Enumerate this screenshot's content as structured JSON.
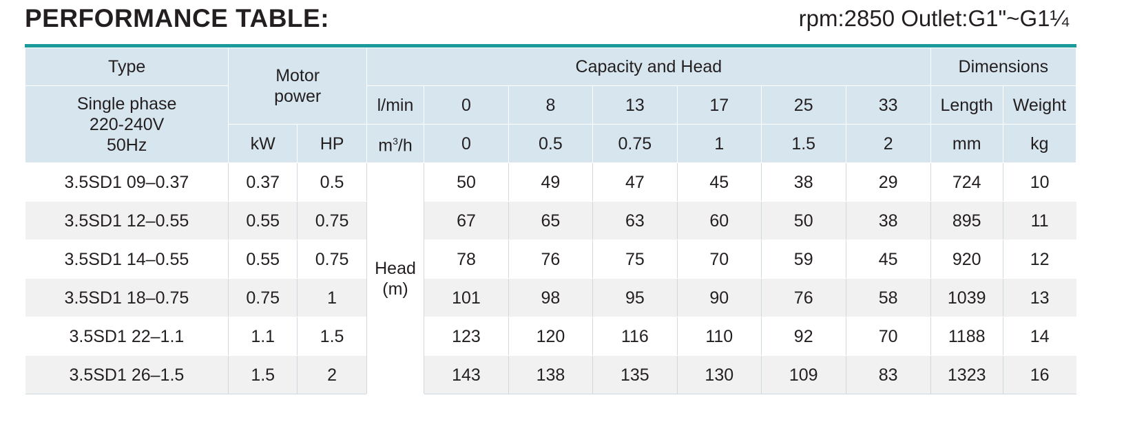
{
  "title": "PERFORMANCE TABLE:",
  "spec": "rpm:2850 Outlet:G1\"~G1¼",
  "header": {
    "type": "Type",
    "phase": [
      "Single phase",
      "220-240V",
      "50Hz"
    ],
    "motor": [
      "Motor",
      "power"
    ],
    "capacity_head": "Capacity and Head",
    "dimensions": "Dimensions",
    "lmin": "l/min",
    "m3h_base": "m",
    "m3h_sup": "3",
    "m3h_tail": "/h",
    "kw": "kW",
    "hp": "HP",
    "length": "Length",
    "weight": "Weight",
    "mm": "mm",
    "kg": "kg",
    "lmin_values": [
      "0",
      "8",
      "13",
      "17",
      "25",
      "33"
    ],
    "m3h_values": [
      "0",
      "0.5",
      "0.75",
      "1",
      "1.5",
      "2"
    ],
    "head_label": [
      "Head",
      "(m)"
    ]
  },
  "rows": [
    {
      "type": "3.5SD1 09–0.37",
      "kw": "0.37",
      "hp": "0.5",
      "heads": [
        "50",
        "49",
        "47",
        "45",
        "38",
        "29"
      ],
      "length": "724",
      "weight": "10"
    },
    {
      "type": "3.5SD1 12–0.55",
      "kw": "0.55",
      "hp": "0.75",
      "heads": [
        "67",
        "65",
        "63",
        "60",
        "50",
        "38"
      ],
      "length": "895",
      "weight": "11"
    },
    {
      "type": "3.5SD1 14–0.55",
      "kw": "0.55",
      "hp": "0.75",
      "heads": [
        "78",
        "76",
        "75",
        "70",
        "59",
        "45"
      ],
      "length": "920",
      "weight": "12"
    },
    {
      "type": "3.5SD1 18–0.75",
      "kw": "0.75",
      "hp": "1",
      "heads": [
        "101",
        "98",
        "95",
        "90",
        "76",
        "58"
      ],
      "length": "1039",
      "weight": "13"
    },
    {
      "type": "3.5SD1 22–1.1",
      "kw": "1.1",
      "hp": "1.5",
      "heads": [
        "123",
        "120",
        "116",
        "110",
        "92",
        "70"
      ],
      "length": "1188",
      "weight": "14"
    },
    {
      "type": "3.5SD1 26–1.5",
      "kw": "1.5",
      "hp": "2",
      "heads": [
        "143",
        "138",
        "135",
        "130",
        "109",
        "83"
      ],
      "length": "1323",
      "weight": "16"
    }
  ]
}
